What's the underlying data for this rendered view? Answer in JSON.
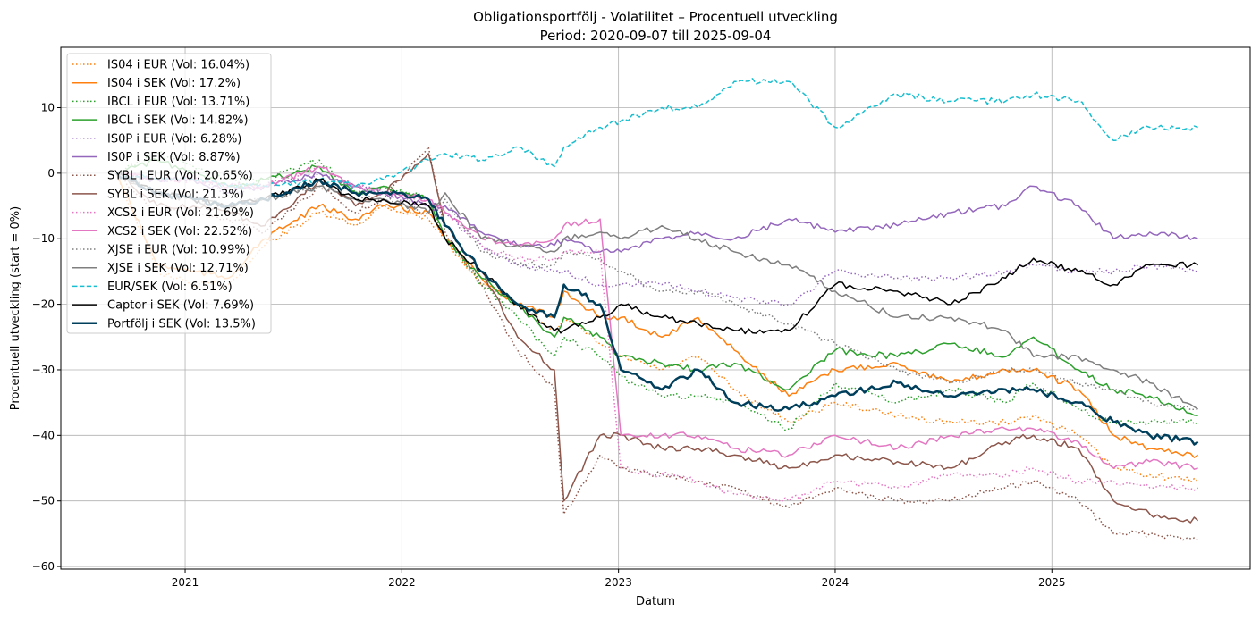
{
  "chart_data": {
    "type": "line",
    "title": "Obligationsportfölj - Volatilitet – Procentuell utveckling",
    "subtitle": "Period: 2020-09-07 till 2025-09-04",
    "xlabel": "Datum",
    "ylabel": "Procentuell utveckling (start = 0%)",
    "xlim": [
      "2020-06-05",
      "2025-12-01"
    ],
    "ylim": [
      -60.4,
      19.2
    ],
    "grid": true,
    "legend_placement": "upper-left",
    "xticks": [
      {
        "value": "2021-01-01",
        "label": "2021"
      },
      {
        "value": "2022-01-01",
        "label": "2022"
      },
      {
        "value": "2023-01-01",
        "label": "2023"
      },
      {
        "value": "2024-01-01",
        "label": "2024"
      },
      {
        "value": "2025-01-01",
        "label": "2025"
      }
    ],
    "yticks": [
      {
        "value": 10,
        "label": "10"
      },
      {
        "value": 0,
        "label": "0"
      },
      {
        "value": -10,
        "label": "−10"
      },
      {
        "value": -20,
        "label": "−20"
      },
      {
        "value": -30,
        "label": "−30"
      },
      {
        "value": -40,
        "label": "−40"
      },
      {
        "value": -50,
        "label": "−50"
      },
      {
        "value": -60,
        "label": "−60"
      }
    ],
    "x": [
      "2020-09-07",
      "2020-11-15",
      "2021-01-15",
      "2021-03-15",
      "2021-05-15",
      "2021-08-15",
      "2021-10-15",
      "2021-12-01",
      "2022-02-15",
      "2022-03-15",
      "2022-05-15",
      "2022-07-15",
      "2022-09-15",
      "2022-10-01",
      "2022-12-01",
      "2023-01-05",
      "2023-03-15",
      "2023-05-15",
      "2023-07-15",
      "2023-10-15",
      "2024-01-01",
      "2024-04-15",
      "2024-07-15",
      "2024-10-15",
      "2024-12-01",
      "2025-02-15",
      "2025-04-15",
      "2025-06-15",
      "2025-09-04"
    ],
    "series": [
      {
        "name": "IS04 i EUR (Vol: 16.04%)",
        "color": "#ff7f0e",
        "style": "dotted",
        "values": [
          0,
          -15,
          -17,
          -17,
          -11,
          -6,
          -8,
          -5,
          -7,
          -10,
          -17,
          -20,
          -24,
          -22,
          -26,
          -28,
          -30,
          -28,
          -33,
          -38,
          -35,
          -37,
          -38,
          -38,
          -37,
          -40,
          -45,
          -46,
          -47
        ]
      },
      {
        "name": "IS04 i SEK (Vol: 17.2%)",
        "color": "#ff7f0e",
        "style": "solid",
        "values": [
          0,
          -14,
          -15,
          -16,
          -10,
          -5,
          -7,
          -5,
          -6,
          -10,
          -16,
          -20,
          -22,
          -18,
          -22,
          -22,
          -25,
          -22,
          -27,
          -34,
          -30,
          -29,
          -32,
          -30,
          -30,
          -33,
          -40,
          -42,
          -43
        ]
      },
      {
        "name": "IBCL i EUR (Vol: 13.71%)",
        "color": "#2ca02c",
        "style": "dotted",
        "values": [
          0,
          3,
          1,
          -1,
          -1,
          2,
          -3,
          -2,
          -4,
          -10,
          -17,
          -22,
          -28,
          -25,
          -28,
          -31,
          -34,
          -34,
          -35,
          -39,
          -32,
          -35,
          -33,
          -35,
          -32,
          -36,
          -38,
          -38,
          -38
        ]
      },
      {
        "name": "IBCL i SEK (Vol: 14.82%)",
        "color": "#2ca02c",
        "style": "solid",
        "values": [
          0,
          2,
          0,
          -2,
          -1,
          1,
          -3,
          -2,
          -4,
          -10,
          -16,
          -20,
          -25,
          -22,
          -25,
          -28,
          -29,
          -30,
          -29,
          -33,
          -27,
          -28,
          -26,
          -28,
          -25,
          -30,
          -33,
          -34,
          -37
        ]
      },
      {
        "name": "IS0P i EUR (Vol: 6.28%)",
        "color": "#9467bd",
        "style": "dotted",
        "values": [
          0,
          -1,
          -1,
          -3,
          -2,
          0,
          -2,
          -3,
          -5,
          -6,
          -11,
          -14,
          -15,
          -15,
          -17,
          -17,
          -17,
          -18,
          -19,
          -20,
          -15,
          -16,
          -16,
          -15,
          -14,
          -15,
          -15,
          -14,
          -15
        ]
      },
      {
        "name": "IS0P i SEK (Vol: 8.87%)",
        "color": "#9467bd",
        "style": "solid",
        "values": [
          0,
          -1,
          -1,
          -3,
          -2,
          0,
          -2,
          -3,
          -5,
          -5,
          -9,
          -11,
          -11,
          -10,
          -12,
          -12,
          -10,
          -9,
          -10,
          -7,
          -9,
          -8,
          -6,
          -5,
          -2,
          -5,
          -10,
          -9,
          -10
        ]
      },
      {
        "name": "SYBL i EUR (Vol: 20.65%)",
        "color": "#8c564b",
        "style": "dotted",
        "values": [
          0,
          -6,
          -6,
          -7,
          -9,
          -2,
          -6,
          -4,
          4,
          -9,
          -17,
          -27,
          -33,
          -52,
          -43,
          -45,
          -46,
          -47,
          -48,
          -51,
          -48,
          -50,
          -50,
          -48,
          -47,
          -50,
          -55,
          -55,
          -56
        ]
      },
      {
        "name": "SYBL i SEK (Vol: 21.3%)",
        "color": "#8c564b",
        "style": "solid",
        "values": [
          0,
          -5,
          -5,
          -6,
          -8,
          -1,
          -5,
          -3,
          3,
          -8,
          -15,
          -25,
          -30,
          -50,
          -40,
          -40,
          -42,
          -42,
          -43,
          -45,
          -43,
          -44,
          -45,
          -41,
          -40,
          -42,
          -50,
          -52,
          -53
        ]
      },
      {
        "name": "XCS2 i EUR (Vol: 21.69%)",
        "color": "#e377c2",
        "style": "dotted",
        "values": [
          0,
          -1,
          -1,
          -2,
          -2,
          1,
          -2,
          -3,
          -4,
          -6,
          -11,
          -13,
          -13,
          -12,
          -12,
          -45,
          -46,
          -47,
          -49,
          -50,
          -47,
          -48,
          -46,
          -46,
          -45,
          -47,
          -47,
          -48,
          -48
        ]
      },
      {
        "name": "XCS2 i SEK (Vol: 22.52%)",
        "color": "#e377c2",
        "style": "solid",
        "values": [
          0,
          -1,
          -1,
          -2,
          -2,
          1,
          -2,
          -3,
          -4,
          -6,
          -10,
          -11,
          -10,
          -8,
          -7,
          -40,
          -40,
          -40,
          -42,
          -43,
          -40,
          -42,
          -40,
          -39,
          -39,
          -41,
          -45,
          -44,
          -45
        ]
      },
      {
        "name": "XJSE i EUR (Vol: 10.99%)",
        "color": "#7f7f7f",
        "style": "dotted",
        "values": [
          0,
          -3,
          -4,
          -5,
          -4,
          -2,
          -4,
          -4,
          -6,
          -4,
          -12,
          -14,
          -14,
          -12,
          -13,
          -15,
          -18,
          -18,
          -20,
          -23,
          -26,
          -30,
          -32,
          -30,
          -30,
          -32,
          -33,
          -35,
          -36
        ]
      },
      {
        "name": "XJSE i SEK (Vol: 12.71%)",
        "color": "#7f7f7f",
        "style": "solid",
        "values": [
          0,
          -3,
          -4,
          -5,
          -4,
          -2,
          -4,
          -4,
          -6,
          -3,
          -10,
          -11,
          -12,
          -10,
          -9,
          -10,
          -8,
          -10,
          -12,
          -14,
          -18,
          -22,
          -22,
          -24,
          -28,
          -28,
          -30,
          -32,
          -36
        ]
      },
      {
        "name": "EUR/SEK (Vol: 6.51%)",
        "color": "#17becf",
        "style": "dashed",
        "values": [
          0,
          -1,
          -1,
          -2,
          -2,
          -1,
          -2,
          -1,
          2,
          3,
          2,
          4,
          1,
          4,
          7,
          8,
          10,
          10,
          14,
          14,
          7,
          12,
          11,
          11,
          12,
          11,
          5,
          7,
          7
        ]
      },
      {
        "name": "Captor i SEK (Vol: 7.69%)",
        "color": "#000000",
        "style": "solid",
        "values": [
          0,
          -3,
          -4,
          -5,
          -4,
          -1,
          -4,
          -4,
          -5,
          -10,
          -15,
          -20,
          -24,
          -24,
          -22,
          -20,
          -22,
          -23,
          -24,
          -24,
          -17,
          -18,
          -20,
          -16,
          -13,
          -15,
          -17,
          -14,
          -14
        ]
      },
      {
        "name": "Portfölj i SEK (Vol: 13.5%)",
        "color": "#003f5c",
        "style": "bold",
        "values": [
          0,
          -3,
          -4,
          -5,
          -4,
          -1,
          -3,
          -3,
          -4,
          -8,
          -15,
          -20,
          -22,
          -17,
          -20,
          -30,
          -33,
          -30,
          -35,
          -36,
          -34,
          -32,
          -34,
          -33,
          -33,
          -35,
          -38,
          -40,
          -41
        ]
      }
    ]
  }
}
